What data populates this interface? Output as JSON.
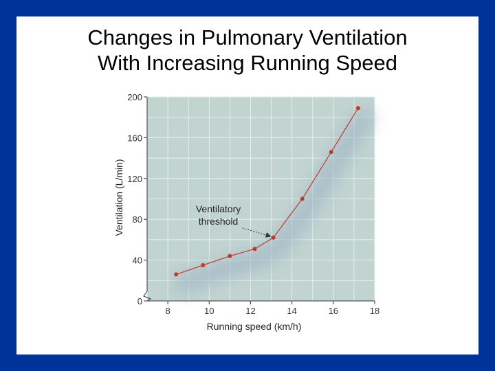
{
  "slide": {
    "background": "#003399",
    "title_line1": "Changes in Pulmonary Ventilation",
    "title_line2": "With Increasing Running Speed"
  },
  "chart_data": {
    "type": "line",
    "xlabel": "Running speed (km/h)",
    "ylabel": "Ventilation (L/min)",
    "xlim": [
      7,
      18
    ],
    "ylim": [
      0,
      200
    ],
    "x_ticks": [
      8,
      10,
      12,
      14,
      16,
      18
    ],
    "y_ticks": [
      0,
      40,
      80,
      120,
      160,
      200
    ],
    "y_axis_break": true,
    "grid": true,
    "plot_background": "#c2d4d0",
    "series_color": "#c0392b",
    "series": [
      {
        "x": [
          8.4,
          9.7,
          11.0,
          12.2,
          13.1,
          14.5,
          15.9,
          17.2
        ],
        "y": [
          26,
          35,
          44,
          51,
          62,
          100,
          146,
          189
        ]
      }
    ],
    "annotations": [
      {
        "line1": "Ventilatory",
        "line2": "threshold",
        "x": 13.1,
        "y": 62
      }
    ]
  }
}
